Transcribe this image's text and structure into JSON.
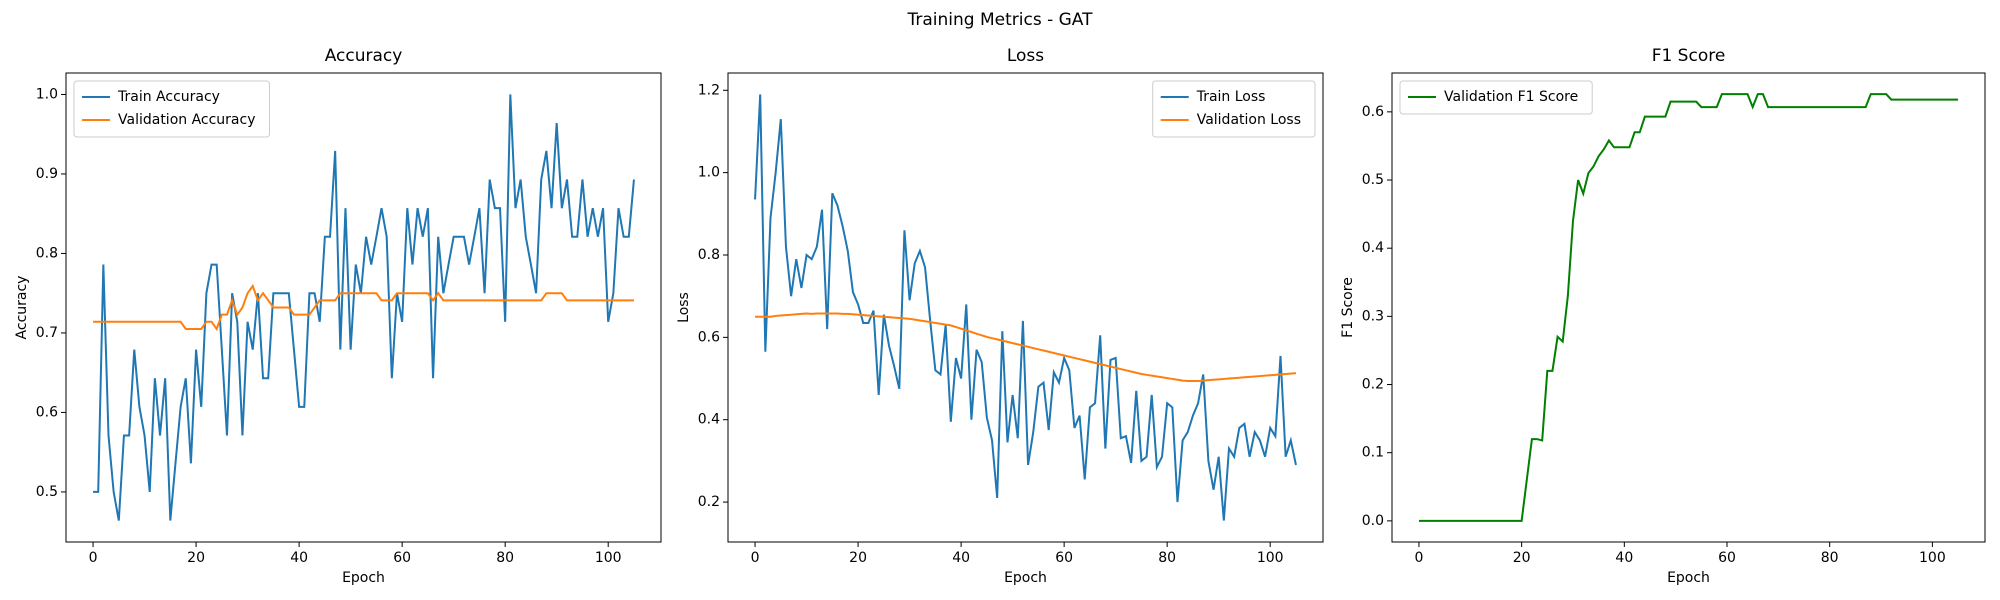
{
  "title": "Training Metrics - GAT",
  "chart_data": [
    {
      "type": "line",
      "title": "Accuracy",
      "x_label": "Epoch",
      "y_label": "Accuracy",
      "legend": "upper left",
      "x": [
        0,
        1,
        2,
        3,
        4,
        5,
        6,
        7,
        8,
        9,
        10,
        11,
        12,
        13,
        14,
        15,
        16,
        17,
        18,
        19,
        20,
        21,
        22,
        23,
        24,
        25,
        26,
        27,
        28,
        29,
        30,
        31,
        32,
        33,
        34,
        35,
        36,
        37,
        38,
        39,
        40,
        41,
        42,
        43,
        44,
        45,
        46,
        47,
        48,
        49,
        50,
        51,
        52,
        53,
        54,
        55,
        56,
        57,
        58,
        59,
        60,
        61,
        62,
        63,
        64,
        65,
        66,
        67,
        68,
        69,
        70,
        71,
        72,
        73,
        74,
        75,
        76,
        77,
        78,
        79,
        80,
        81,
        82,
        83,
        84,
        85,
        86,
        87,
        88,
        89,
        90,
        91,
        92,
        93,
        94,
        95,
        96,
        97,
        98,
        99,
        100,
        101,
        102,
        103,
        104,
        105
      ],
      "series": [
        {
          "name": "Train Accuracy",
          "color": "#1f77b4",
          "values": [
            0.5,
            0.5,
            0.786,
            0.571,
            0.5,
            0.464,
            0.571,
            0.571,
            0.679,
            0.607,
            0.571,
            0.5,
            0.643,
            0.571,
            0.643,
            0.464,
            0.536,
            0.607,
            0.643,
            0.536,
            0.679,
            0.607,
            0.75,
            0.786,
            0.786,
            0.679,
            0.571,
            0.75,
            0.714,
            0.571,
            0.714,
            0.679,
            0.75,
            0.643,
            0.643,
            0.75,
            0.75,
            0.75,
            0.75,
            0.679,
            0.607,
            0.607,
            0.75,
            0.75,
            0.714,
            0.821,
            0.821,
            0.929,
            0.679,
            0.857,
            0.679,
            0.786,
            0.75,
            0.821,
            0.786,
            0.821,
            0.857,
            0.821,
            0.643,
            0.75,
            0.714,
            0.857,
            0.786,
            0.857,
            0.821,
            0.857,
            0.643,
            0.821,
            0.75,
            0.786,
            0.821,
            0.821,
            0.821,
            0.786,
            0.821,
            0.857,
            0.75,
            0.893,
            0.857,
            0.857,
            0.714,
            1.0,
            0.857,
            0.893,
            0.821,
            0.786,
            0.75,
            0.893,
            0.929,
            0.857,
            0.964,
            0.857,
            0.893,
            0.821,
            0.821,
            0.893,
            0.821,
            0.857,
            0.821,
            0.857,
            0.714,
            0.75,
            0.857,
            0.821,
            0.821,
            0.893
          ]
        },
        {
          "name": "Validation Accuracy",
          "color": "#ff7f0e",
          "values": [
            0.714,
            0.714,
            0.714,
            0.714,
            0.714,
            0.714,
            0.714,
            0.714,
            0.714,
            0.714,
            0.714,
            0.714,
            0.714,
            0.714,
            0.714,
            0.714,
            0.714,
            0.714,
            0.705,
            0.705,
            0.705,
            0.705,
            0.714,
            0.714,
            0.705,
            0.723,
            0.723,
            0.741,
            0.723,
            0.732,
            0.75,
            0.759,
            0.741,
            0.75,
            0.741,
            0.732,
            0.732,
            0.732,
            0.732,
            0.723,
            0.723,
            0.723,
            0.723,
            0.732,
            0.741,
            0.741,
            0.741,
            0.741,
            0.75,
            0.75,
            0.75,
            0.75,
            0.75,
            0.75,
            0.75,
            0.75,
            0.741,
            0.741,
            0.741,
            0.75,
            0.75,
            0.75,
            0.75,
            0.75,
            0.75,
            0.75,
            0.741,
            0.75,
            0.741,
            0.741,
            0.741,
            0.741,
            0.741,
            0.741,
            0.741,
            0.741,
            0.741,
            0.741,
            0.741,
            0.741,
            0.741,
            0.741,
            0.741,
            0.741,
            0.741,
            0.741,
            0.741,
            0.741,
            0.75,
            0.75,
            0.75,
            0.75,
            0.741,
            0.741,
            0.741,
            0.741,
            0.741,
            0.741,
            0.741,
            0.741,
            0.741,
            0.741,
            0.741,
            0.741,
            0.741,
            0.741
          ]
        }
      ],
      "xlim": [
        -5.25,
        110.25
      ],
      "ylim": [
        0.437,
        1.027
      ],
      "xticks": [
        0,
        20,
        40,
        60,
        80,
        100
      ],
      "yticks": [
        0.5,
        0.6,
        0.7,
        0.8,
        0.9,
        {
          "value": 1,
          "label": "1.0"
        }
      ]
    },
    {
      "type": "line",
      "title": "Loss",
      "x_label": "Epoch",
      "y_label": "Loss",
      "legend": "upper right",
      "x": [
        0,
        1,
        2,
        3,
        4,
        5,
        6,
        7,
        8,
        9,
        10,
        11,
        12,
        13,
        14,
        15,
        16,
        17,
        18,
        19,
        20,
        21,
        22,
        23,
        24,
        25,
        26,
        27,
        28,
        29,
        30,
        31,
        32,
        33,
        34,
        35,
        36,
        37,
        38,
        39,
        40,
        41,
        42,
        43,
        44,
        45,
        46,
        47,
        48,
        49,
        50,
        51,
        52,
        53,
        54,
        55,
        56,
        57,
        58,
        59,
        60,
        61,
        62,
        63,
        64,
        65,
        66,
        67,
        68,
        69,
        70,
        71,
        72,
        73,
        74,
        75,
        76,
        77,
        78,
        79,
        80,
        81,
        82,
        83,
        84,
        85,
        86,
        87,
        88,
        89,
        90,
        91,
        92,
        93,
        94,
        95,
        96,
        97,
        98,
        99,
        100,
        101,
        102,
        103,
        104,
        105
      ],
      "series": [
        {
          "name": "Train Loss",
          "color": "#1f77b4",
          "values": [
            0.935,
            1.19,
            0.565,
            0.89,
            1.0,
            1.13,
            0.82,
            0.7,
            0.79,
            0.72,
            0.8,
            0.79,
            0.82,
            0.91,
            0.62,
            0.95,
            0.92,
            0.87,
            0.81,
            0.71,
            0.68,
            0.635,
            0.635,
            0.665,
            0.46,
            0.655,
            0.58,
            0.53,
            0.475,
            0.86,
            0.69,
            0.78,
            0.81,
            0.77,
            0.64,
            0.52,
            0.51,
            0.63,
            0.395,
            0.55,
            0.5,
            0.68,
            0.4,
            0.57,
            0.54,
            0.405,
            0.35,
            0.21,
            0.615,
            0.345,
            0.46,
            0.355,
            0.64,
            0.29,
            0.37,
            0.48,
            0.49,
            0.375,
            0.515,
            0.49,
            0.55,
            0.52,
            0.38,
            0.41,
            0.255,
            0.43,
            0.44,
            0.605,
            0.33,
            0.545,
            0.55,
            0.355,
            0.36,
            0.295,
            0.47,
            0.3,
            0.31,
            0.46,
            0.285,
            0.31,
            0.44,
            0.43,
            0.2,
            0.35,
            0.37,
            0.41,
            0.44,
            0.51,
            0.3,
            0.23,
            0.31,
            0.155,
            0.33,
            0.31,
            0.38,
            0.39,
            0.31,
            0.37,
            0.35,
            0.31,
            0.38,
            0.36,
            0.555,
            0.31,
            0.35,
            0.29
          ]
        },
        {
          "name": "Validation Loss",
          "color": "#ff7f0e",
          "values": [
            0.65,
            0.65,
            0.65,
            0.65,
            0.652,
            0.653,
            0.654,
            0.655,
            0.656,
            0.657,
            0.658,
            0.657,
            0.658,
            0.658,
            0.658,
            0.658,
            0.658,
            0.657,
            0.657,
            0.656,
            0.655,
            0.654,
            0.653,
            0.652,
            0.651,
            0.65,
            0.649,
            0.648,
            0.647,
            0.646,
            0.645,
            0.643,
            0.641,
            0.639,
            0.637,
            0.635,
            0.633,
            0.631,
            0.629,
            0.625,
            0.621,
            0.617,
            0.613,
            0.609,
            0.605,
            0.601,
            0.598,
            0.595,
            0.592,
            0.589,
            0.586,
            0.583,
            0.58,
            0.577,
            0.574,
            0.571,
            0.568,
            0.565,
            0.562,
            0.559,
            0.556,
            0.553,
            0.55,
            0.547,
            0.544,
            0.541,
            0.538,
            0.535,
            0.532,
            0.529,
            0.526,
            0.523,
            0.52,
            0.517,
            0.514,
            0.511,
            0.509,
            0.507,
            0.505,
            0.503,
            0.501,
            0.499,
            0.497,
            0.495,
            0.494,
            0.494,
            0.494,
            0.495,
            0.496,
            0.497,
            0.498,
            0.499,
            0.5,
            0.501,
            0.502,
            0.503,
            0.504,
            0.505,
            0.506,
            0.507,
            0.508,
            0.509,
            0.51,
            0.511,
            0.512,
            0.513
          ]
        }
      ],
      "xlim": [
        -5.25,
        110.25
      ],
      "ylim": [
        0.103,
        1.242
      ],
      "xticks": [
        0,
        20,
        40,
        60,
        80,
        100
      ],
      "yticks": [
        0.2,
        0.4,
        0.6,
        0.8,
        {
          "value": 1,
          "label": "1.0"
        },
        1.2
      ]
    },
    {
      "type": "line",
      "title": "F1 Score",
      "x_label": "Epoch",
      "y_label": "F1 Score",
      "legend": "upper left",
      "x": [
        0,
        1,
        2,
        3,
        4,
        5,
        6,
        7,
        8,
        9,
        10,
        11,
        12,
        13,
        14,
        15,
        16,
        17,
        18,
        19,
        20,
        21,
        22,
        23,
        24,
        25,
        26,
        27,
        28,
        29,
        30,
        31,
        32,
        33,
        34,
        35,
        36,
        37,
        38,
        39,
        40,
        41,
        42,
        43,
        44,
        45,
        46,
        47,
        48,
        49,
        50,
        51,
        52,
        53,
        54,
        55,
        56,
        57,
        58,
        59,
        60,
        61,
        62,
        63,
        64,
        65,
        66,
        67,
        68,
        69,
        70,
        71,
        72,
        73,
        74,
        75,
        76,
        77,
        78,
        79,
        80,
        81,
        82,
        83,
        84,
        85,
        86,
        87,
        88,
        89,
        90,
        91,
        92,
        93,
        94,
        95,
        96,
        97,
        98,
        99,
        100,
        101,
        102,
        103,
        104,
        105
      ],
      "series": [
        {
          "name": "Validation F1 Score",
          "color": "#008000",
          "values": [
            0,
            0,
            0,
            0,
            0,
            0,
            0,
            0,
            0,
            0,
            0,
            0,
            0,
            0,
            0,
            0,
            0,
            0,
            0,
            0,
            0,
            0.06,
            0.12,
            0.12,
            0.118,
            0.22,
            0.22,
            0.27,
            0.263,
            0.33,
            0.44,
            0.5,
            0.48,
            0.51,
            0.52,
            0.535,
            0.545,
            0.558,
            0.548,
            0.548,
            0.548,
            0.548,
            0.57,
            0.57,
            0.593,
            0.593,
            0.593,
            0.593,
            0.593,
            0.615,
            0.615,
            0.615,
            0.615,
            0.615,
            0.615,
            0.607,
            0.607,
            0.607,
            0.607,
            0.626,
            0.626,
            0.626,
            0.626,
            0.626,
            0.626,
            0.607,
            0.626,
            0.626,
            0.607,
            0.607,
            0.607,
            0.607,
            0.607,
            0.607,
            0.607,
            0.607,
            0.607,
            0.607,
            0.607,
            0.607,
            0.607,
            0.607,
            0.607,
            0.607,
            0.607,
            0.607,
            0.607,
            0.607,
            0.626,
            0.626,
            0.626,
            0.626,
            0.618,
            0.618,
            0.618,
            0.618,
            0.618,
            0.618,
            0.618,
            0.618,
            0.618,
            0.618,
            0.618,
            0.618,
            0.618,
            0.618
          ]
        }
      ],
      "xlim": [
        -5.25,
        110.25
      ],
      "ylim": [
        -0.031,
        0.657
      ],
      "xticks": [
        0,
        20,
        40,
        60,
        80,
        100
      ],
      "yticks": [
        {
          "value": 0,
          "label": "0.0"
        },
        0.1,
        0.2,
        0.3,
        0.4,
        0.5,
        0.6
      ]
    }
  ]
}
